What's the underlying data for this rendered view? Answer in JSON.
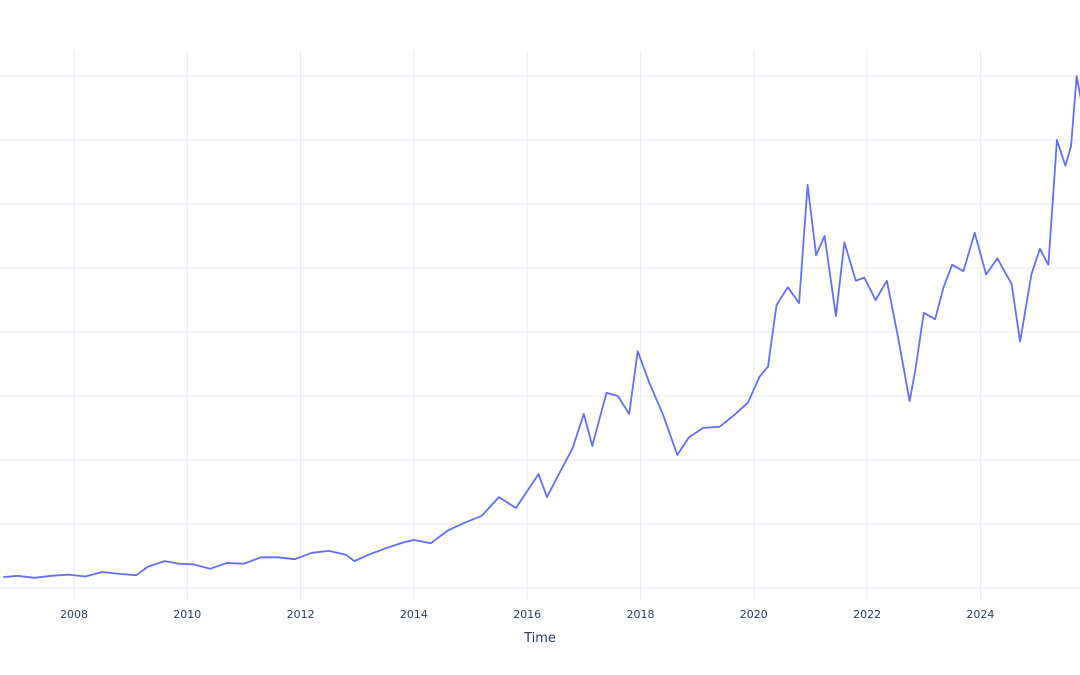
{
  "chart_data": {
    "type": "line",
    "title": "",
    "xlabel": "Time",
    "ylabel": "",
    "grid": true,
    "legend": "none",
    "xlim": [
      2006.75,
      2025.8
    ],
    "ylim": [
      0,
      8.2
    ],
    "x_ticks": [
      2008,
      2010,
      2012,
      2014,
      2016,
      2018,
      2020,
      2022,
      2024
    ],
    "x_tick_labels": [
      "2008",
      "2010",
      "2012",
      "2014",
      "2016",
      "2018",
      "2020",
      "2022",
      "2024"
    ],
    "y_gridlines": [
      0,
      1,
      2,
      3,
      4,
      5,
      6,
      7,
      8
    ],
    "line_color": "#636efa",
    "series": [
      {
        "x": [
          2006.75,
          2007.0,
          2007.3,
          2007.6,
          2007.9,
          2008.2,
          2008.5,
          2008.8,
          2009.1,
          2009.3,
          2009.6,
          2009.85,
          2010.1,
          2010.4,
          2010.7,
          2011.0,
          2011.3,
          2011.6,
          2011.9,
          2012.2,
          2012.5,
          2012.8,
          2012.95,
          2013.2,
          2013.5,
          2013.8,
          2014.0,
          2014.3,
          2014.6,
          2014.9,
          2015.2,
          2015.5,
          2015.8,
          2015.95,
          2016.2,
          2016.35,
          2016.5,
          2016.8,
          2017.0,
          2017.15,
          2017.4,
          2017.6,
          2017.8,
          2017.95,
          2018.15,
          2018.4,
          2018.65,
          2018.85,
          2019.1,
          2019.4,
          2019.65,
          2019.9,
          2020.1,
          2020.25,
          2020.4,
          2020.6,
          2020.8,
          2020.95,
          2021.1,
          2021.25,
          2021.45,
          2021.6,
          2021.8,
          2021.95,
          2022.15,
          2022.35,
          2022.55,
          2022.75,
          2022.85,
          2023.0,
          2023.2,
          2023.35,
          2023.5,
          2023.7,
          2023.9,
          2024.1,
          2024.3,
          2024.55,
          2024.7,
          2024.9,
          2025.05,
          2025.2,
          2025.35,
          2025.5,
          2025.6,
          2025.7,
          2025.8
        ],
        "y": [
          0.17,
          0.19,
          0.16,
          0.19,
          0.21,
          0.18,
          0.25,
          0.22,
          0.2,
          0.33,
          0.42,
          0.38,
          0.37,
          0.3,
          0.39,
          0.38,
          0.48,
          0.48,
          0.45,
          0.55,
          0.58,
          0.52,
          0.42,
          0.52,
          0.62,
          0.71,
          0.75,
          0.7,
          0.9,
          1.02,
          1.13,
          1.42,
          1.25,
          1.45,
          1.78,
          1.42,
          1.68,
          2.18,
          2.72,
          2.22,
          3.05,
          3.0,
          2.72,
          3.7,
          3.22,
          2.7,
          2.08,
          2.35,
          2.5,
          2.52,
          2.7,
          2.9,
          3.3,
          3.46,
          4.42,
          4.7,
          4.45,
          6.3,
          5.2,
          5.5,
          4.25,
          5.4,
          4.8,
          4.85,
          4.5,
          4.8,
          3.9,
          2.92,
          3.4,
          4.3,
          4.2,
          4.7,
          5.05,
          4.95,
          5.55,
          4.9,
          5.15,
          4.75,
          3.85,
          4.9,
          5.3,
          5.05,
          7.0,
          6.6,
          6.9,
          8.0,
          7.5
        ]
      }
    ]
  }
}
